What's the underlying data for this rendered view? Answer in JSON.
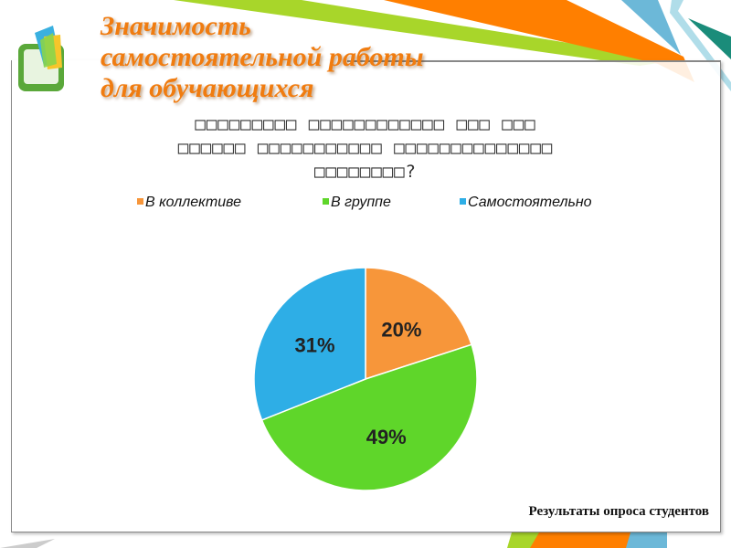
{
  "slide": {
    "title_lines": [
      "Значимость",
      "самостоятельной работы",
      "для обучающихся"
    ],
    "caption": "Результаты опроса студентов"
  },
  "chart_data": {
    "type": "pie",
    "title_lines": [
      "□□□□□□□□□ □□□□□□□□□□□□ □□□ □□□",
      "□□□□□□ □□□□□□□□□□□ □□□□□□□□□□□□□□",
      "□□□□□□□□?"
    ],
    "categories": [
      "В коллективе",
      "В группе",
      "Самостоятельно"
    ],
    "values": [
      20,
      49,
      31
    ],
    "labels": [
      "20%",
      "49%",
      "31%"
    ],
    "colors": [
      "#f7963a",
      "#5fd62a",
      "#2eaee6"
    ],
    "legend_position": "top",
    "start_angle": "12 o'clock, clockwise"
  }
}
